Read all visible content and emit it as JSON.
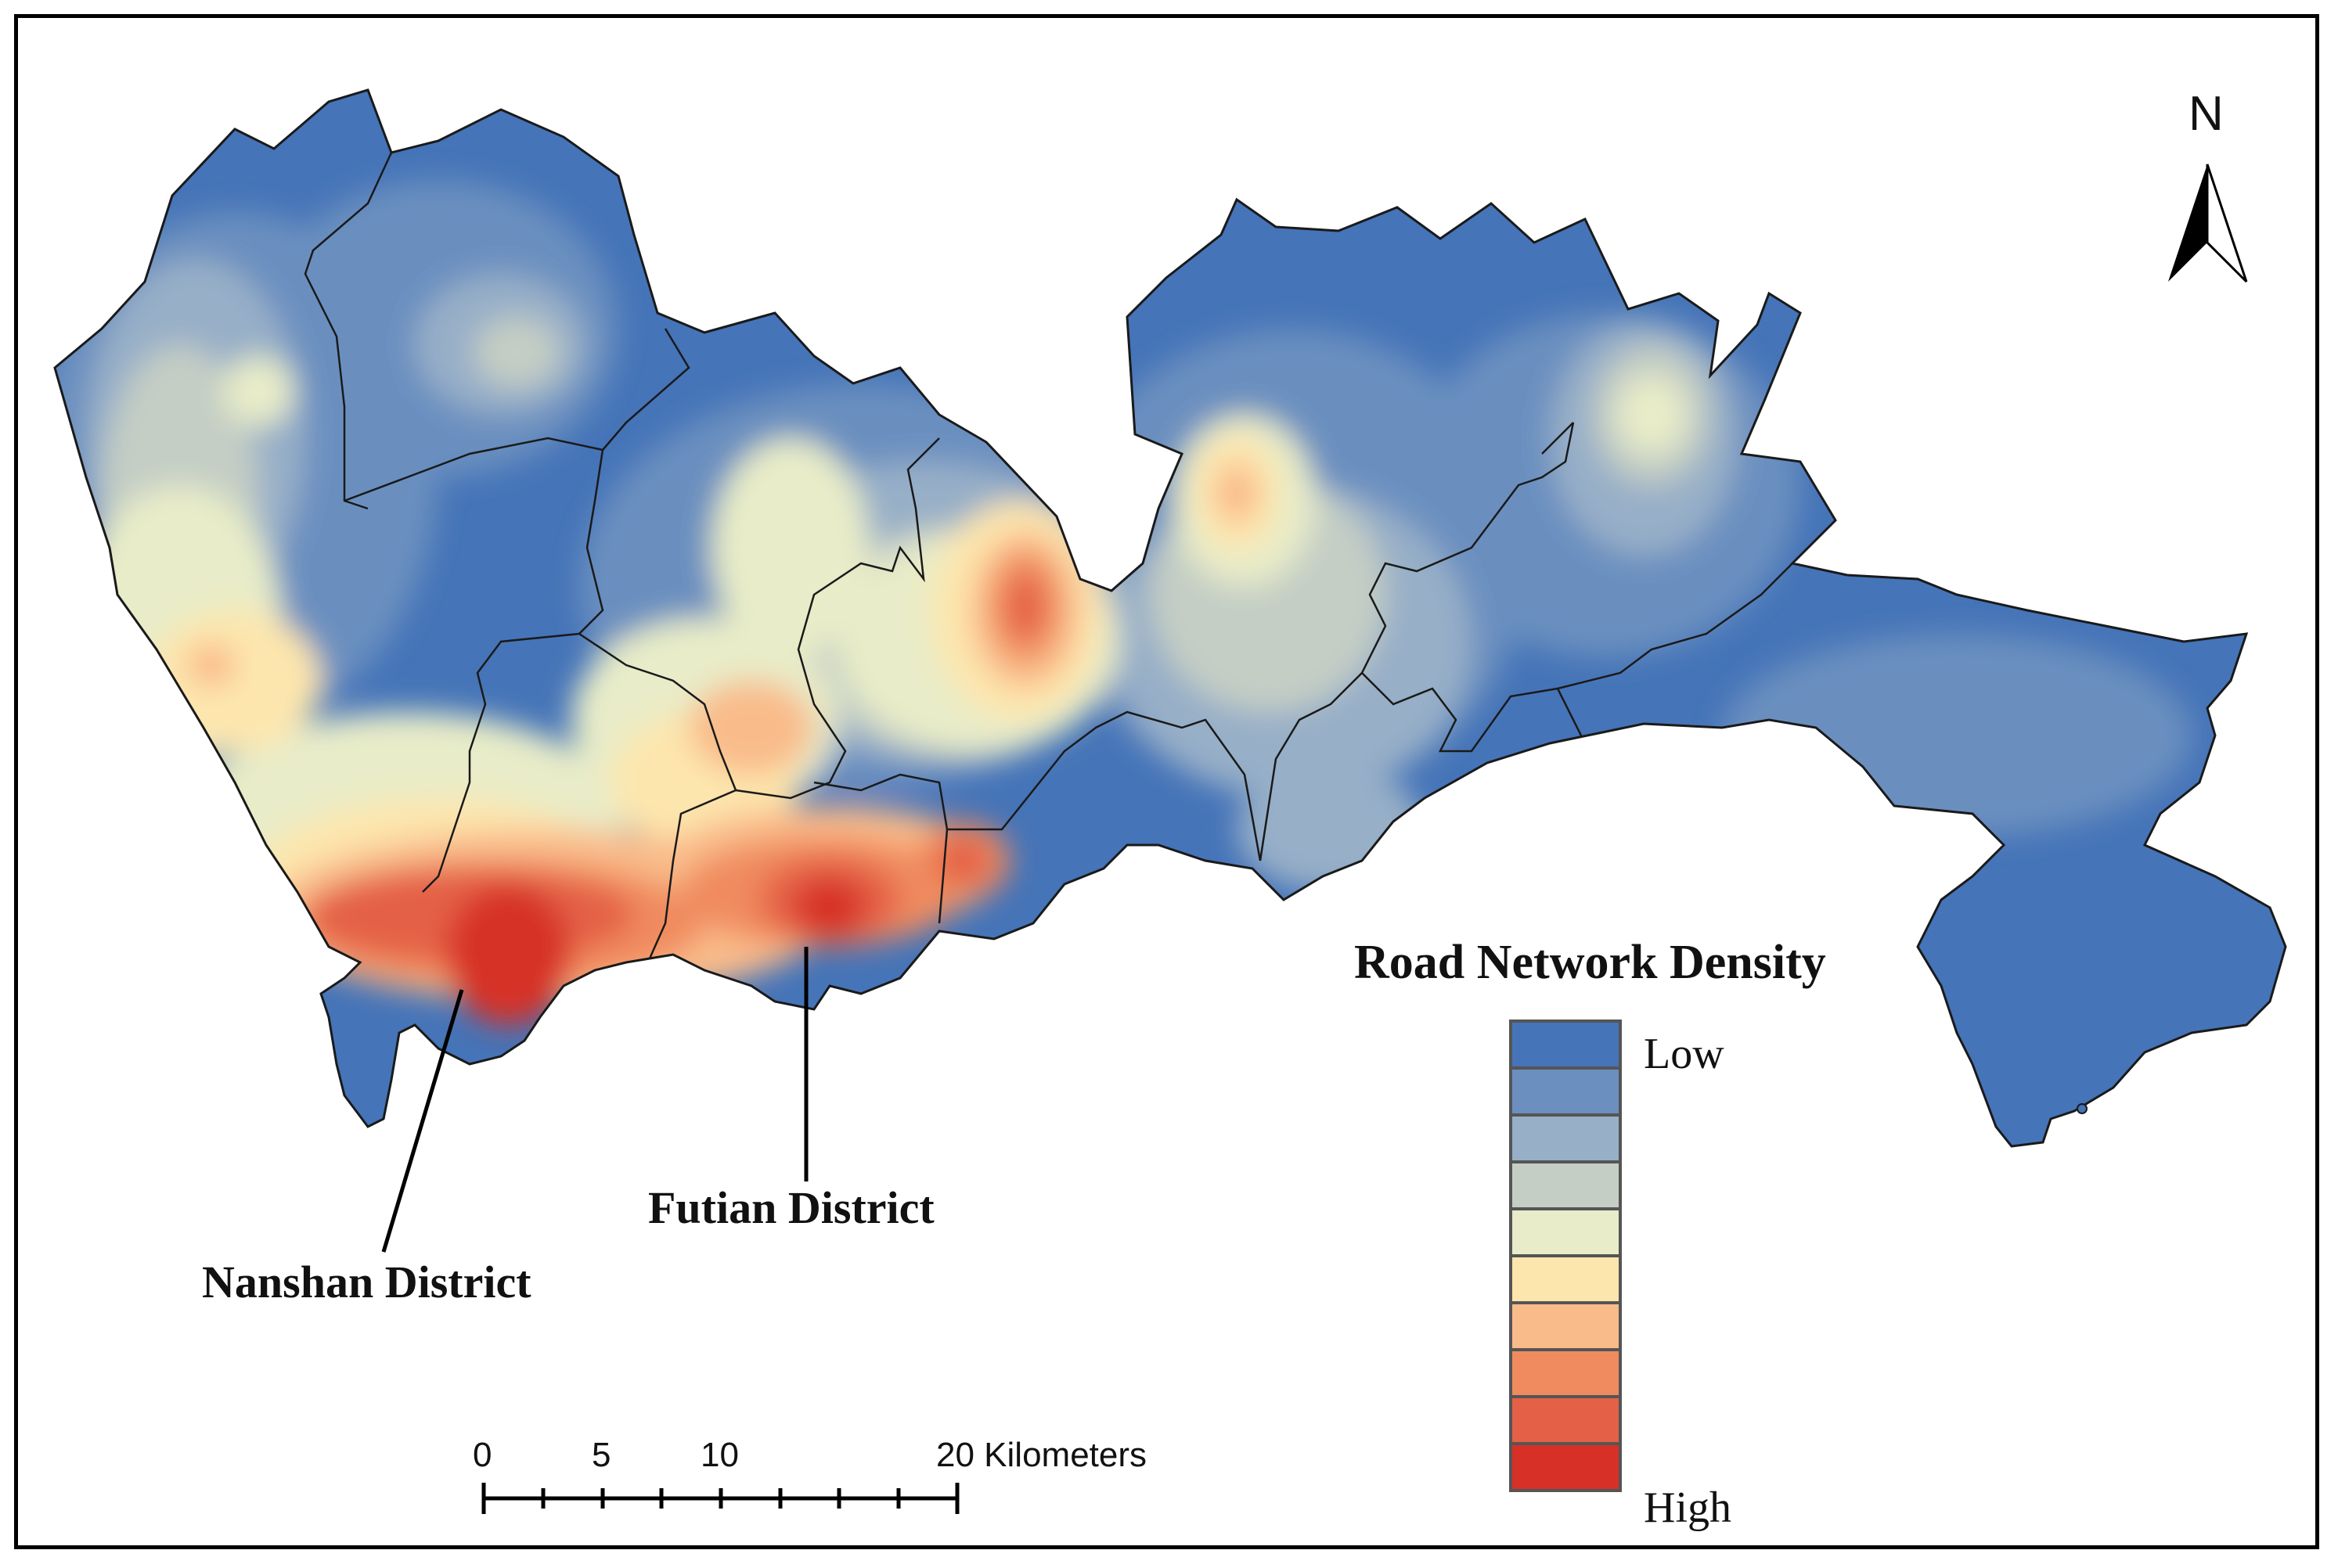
{
  "map": {
    "legend": {
      "title": "Road Network Density",
      "low_label": "Low",
      "high_label": "High",
      "classes": [
        "#4574b8",
        "#6b8fbf",
        "#97afc7",
        "#c4cec5",
        "#e8ecc8",
        "#fde6ad",
        "#f9bb8a",
        "#f08b5f",
        "#e46046",
        "#d73027"
      ]
    },
    "callouts": {
      "nanshan": "Nanshan District",
      "futian": "Futian District"
    },
    "scale_bar": {
      "ticks": [
        "0",
        "5",
        "10",
        "20 Kilometers"
      ]
    },
    "north_arrow": {
      "label": "N"
    }
  }
}
